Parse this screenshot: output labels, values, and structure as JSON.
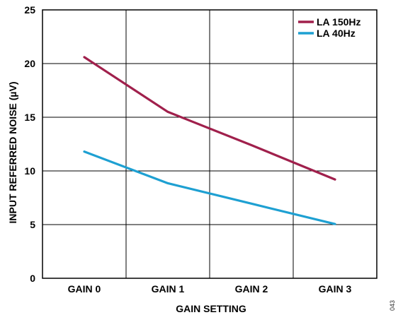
{
  "figure_id": "043",
  "chart_data": {
    "type": "line",
    "categories": [
      "GAIN 0",
      "GAIN 1",
      "GAIN 2",
      "GAIN 3"
    ],
    "series": [
      {
        "name": "LA 150Hz",
        "color": "#a0204c",
        "values": [
          20.6,
          15.5,
          12.4,
          9.2
        ]
      },
      {
        "name": "LA 40Hz",
        "color": "#1ea0d2",
        "values": [
          11.8,
          8.85,
          6.95,
          5.05
        ]
      }
    ],
    "xlabel": "GAIN SETTING",
    "ylabel": "INPUT REFERRED NOISE (µV)",
    "ylim": [
      0,
      25
    ],
    "yticks": [
      0,
      5,
      10,
      15,
      20,
      25
    ],
    "grid": true,
    "legend_position": "top-right"
  }
}
